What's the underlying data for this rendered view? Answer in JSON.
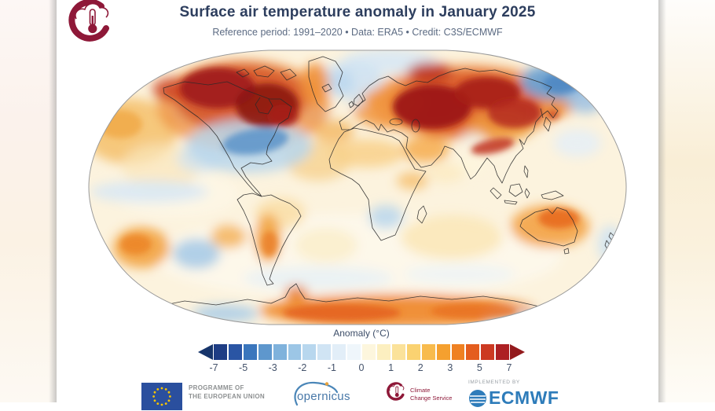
{
  "header": {
    "title": "Surface air temperature anomaly in January 2025",
    "subtitle": "Reference period: 1991–2020 • Data: ERA5 • Credit: C3S/ECMWF"
  },
  "colorbar": {
    "label": "Anomaly (°C)",
    "ticks": [
      "-7",
      "-5",
      "-3",
      "-2",
      "-1",
      "0",
      "1",
      "2",
      "3",
      "5",
      "7"
    ],
    "segment_colors": [
      "#1e3d84",
      "#2a55a4",
      "#3a76bd",
      "#5e97cd",
      "#7fb2dc",
      "#9cc6e6",
      "#b8d7ee",
      "#d0e4f4",
      "#e2eef8",
      "#eff6fb",
      "#fdf6dd",
      "#fcefc0",
      "#fbe29a",
      "#fad271",
      "#f8bb4d",
      "#f5a02f",
      "#ef8122",
      "#e45d1e",
      "#cc3a22",
      "#ad2023"
    ],
    "left_arrow_color": "#17356b",
    "right_arrow_color": "#931a1d"
  },
  "map": {
    "projection": "Robinson world map",
    "notable_warm_regions": [
      "Northern Canada",
      "Western Greenland",
      "Alaska",
      "Eastern Europe",
      "Siberia",
      "Central Asia",
      "Middle East",
      "North-west Africa",
      "Interior Australia",
      "Argentina",
      "East Antarctica",
      "North Pacific",
      "South Pacific patch"
    ],
    "notable_cool_regions": [
      "Central and eastern United States",
      "North-eastern Siberia / Bering Sea",
      "Arctic Ocean near Greenland",
      "British Isles",
      "Southern Africa patch",
      "Equatorial Pacific band",
      "South Pacific patch",
      "Coastal New Zealand"
    ]
  },
  "footer": {
    "eu_programme_line1": "PROGRAMME OF",
    "eu_programme_line2": "THE EUROPEAN UNION",
    "copernicus_wordmark": "opernicus",
    "climate_service_line1": "Climate",
    "climate_service_line2": "Change Service",
    "implemented_by": "IMPLEMENTED BY",
    "ecmwf_wordmark": "ECMWF"
  },
  "brand_colors": {
    "c3s_maroon": "#8e1838",
    "copernicus_blue": "#4878a8",
    "ecmwf_blue": "#2e7cba",
    "eu_flag_blue": "#2a4f9e",
    "eu_star_gold": "#f7c500",
    "title_navy": "#2d3e5e"
  }
}
